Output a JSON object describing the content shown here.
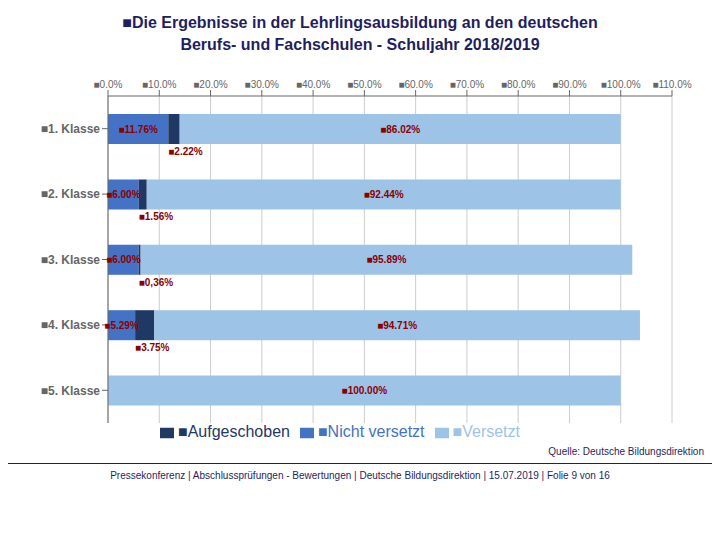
{
  "chart_data": {
    "type": "bar",
    "orientation": "horizontal",
    "stacked": true,
    "data_labels": true,
    "grid": true,
    "legend": "bottom",
    "title": "■Die Ergebnisse in der Lehrlingsausbildung an den deutschen",
    "subtitle": "Berufs- und Fachschulen - Schuljahr 2018/2019",
    "annotations": [
      "Quelle: Deutsche Bildungsdirektion",
      "Pressekonferenz | Abschlussprüfungen - Bewertungen | Deutsche Bildungsdirektion | 15.07.2019 | Folie  9 von 16"
    ],
    "categories": [
      "■1. Klasse",
      "■2. Klasse",
      "■3. Klasse",
      "■4. Klasse",
      "■5. Klasse"
    ],
    "series": [
      {
        "name": "■Nicht versetzt",
        "color": "#4472C4",
        "values": [
          11.76,
          6.0,
          6.0,
          5.29,
          0.0
        ],
        "value_labels": [
          "■11.76%",
          "■6.00%",
          "■6.00%",
          "■5.29%",
          null
        ]
      },
      {
        "name": "■Aufgeschoben",
        "color": "#1F3864",
        "values": [
          2.22,
          1.56,
          0.36,
          3.75,
          0.0
        ],
        "value_labels": [
          "■2.22%",
          "■1.56%",
          "■0,36%",
          "■3.75%",
          null
        ]
      },
      {
        "name": "■Versetzt",
        "color": "#9DC3E6",
        "values": [
          86.02,
          92.44,
          95.89,
          94.71,
          100.0
        ],
        "value_labels": [
          "■86.02%",
          "■92.44%",
          "■95.89%",
          "■94.71%",
          "■100.00%"
        ]
      }
    ],
    "xlim": [
      0,
      110
    ],
    "xticks": [
      {
        "value": 0,
        "label": "■0.0%"
      },
      {
        "value": 10,
        "label": "■10.0%"
      },
      {
        "value": 20,
        "label": "■20.0%"
      },
      {
        "value": 30,
        "label": "■30.0%"
      },
      {
        "value": 40,
        "label": "■40.0%"
      },
      {
        "value": 50,
        "label": "■50.0%"
      },
      {
        "value": 60,
        "label": "■60.0%"
      },
      {
        "value": 70,
        "label": "■70.0%"
      },
      {
        "value": 80,
        "label": "■80.0%"
      },
      {
        "value": 90,
        "label": "■90.0%"
      },
      {
        "value": 100,
        "label": "■100.0%"
      },
      {
        "value": 110,
        "label": "■110.0%"
      }
    ]
  }
}
